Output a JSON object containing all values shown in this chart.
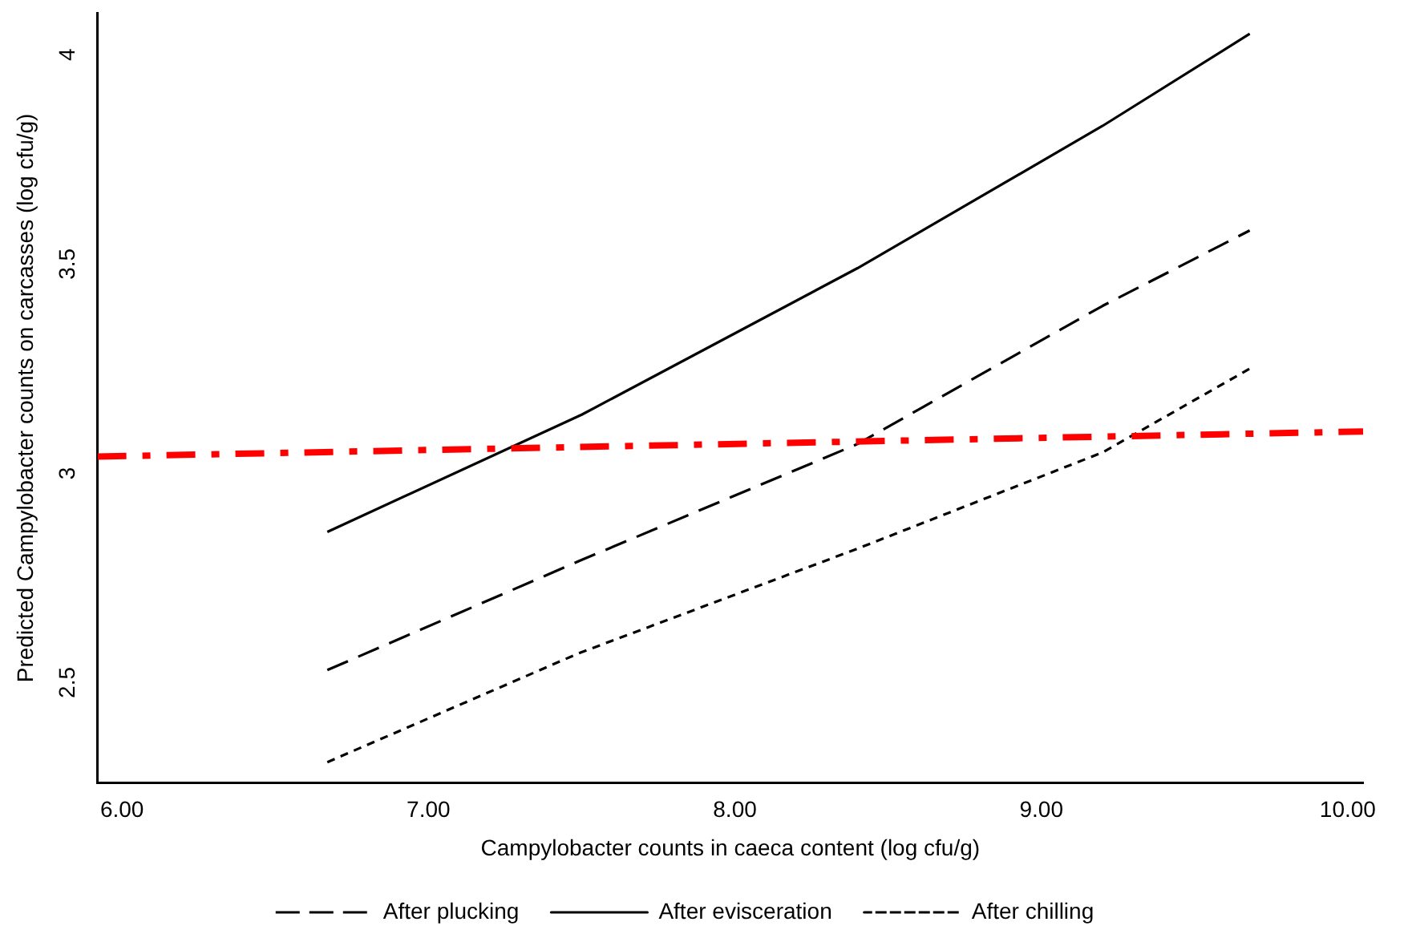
{
  "chart_data": {
    "type": "line",
    "xlabel": "Campylobacter counts in caeca content (log cfu/g)",
    "ylabel": "Predicted Campylobacter counts on carcasses (log cfu/g)",
    "xlim": [
      5.92,
      10.05
    ],
    "xticks": [
      {
        "value": 6,
        "label": "6.00"
      },
      {
        "value": 7,
        "label": "7.00"
      },
      {
        "value": 8,
        "label": "8.00"
      },
      {
        "value": 9,
        "label": "9.00"
      },
      {
        "value": 10,
        "label": "10.00"
      }
    ],
    "ylim": [
      2.26,
      4.1
    ],
    "yticks": [
      2.5,
      3,
      3.5,
      4
    ],
    "grid": false,
    "legend": "bottom",
    "marker": "none",
    "series": [
      {
        "name": "After plucking",
        "color": "#000000",
        "line_style": "dashed",
        "x": [
          6.67,
          7.49,
          8.4,
          9.2,
          9.68
        ],
        "values": [
          2.53,
          2.79,
          3.07,
          3.4,
          3.58
        ]
      },
      {
        "name": "After evisceration",
        "color": "#000000",
        "line_style": "solid",
        "x": [
          6.67,
          7.5,
          8.4,
          9.2,
          9.68
        ],
        "values": [
          2.86,
          3.14,
          3.49,
          3.83,
          4.05
        ]
      },
      {
        "name": "After chilling",
        "color": "#000000",
        "line_style": "dotted",
        "x": [
          6.67,
          7.49,
          8.4,
          9.2,
          9.68
        ],
        "values": [
          2.31,
          2.57,
          2.82,
          3.05,
          3.25
        ]
      },
      {
        "color": "#ff0000",
        "line_style": "dashed",
        "x": [
          5.92,
          10.05
        ],
        "values": [
          3.04,
          3.1
        ]
      }
    ]
  }
}
